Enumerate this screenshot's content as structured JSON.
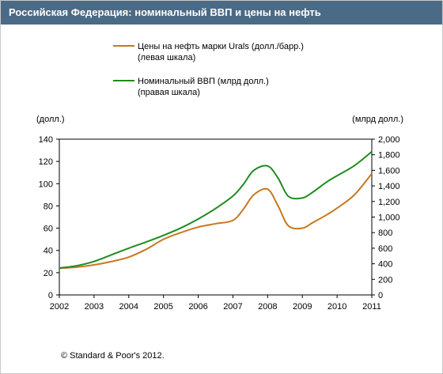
{
  "header": {
    "title": "Российская Федерация: номинальный ВВП и цены на нефть"
  },
  "footer": {
    "copyright": "© Standard & Poor's 2012."
  },
  "colors": {
    "oil": "#c8781e",
    "gdp": "#1e8c1e",
    "title_bg": "#4b6a85"
  },
  "chart_data": {
    "type": "line",
    "x": [
      2002.0,
      2002.5,
      2003.0,
      2003.5,
      2004.0,
      2004.5,
      2005.0,
      2005.5,
      2006.0,
      2006.5,
      2007.0,
      2007.3,
      2007.6,
      2008.0,
      2008.3,
      2008.6,
      2009.0,
      2009.3,
      2009.7,
      2010.0,
      2010.5,
      2011.0
    ],
    "xticks": [
      "2002",
      "2003",
      "2004",
      "2005",
      "2006",
      "2007",
      "2008",
      "2009",
      "2010",
      "2011"
    ],
    "left_axis": {
      "label": "(долл.)",
      "ticks": [
        "0",
        "20",
        "40",
        "60",
        "80",
        "100",
        "120",
        "140"
      ],
      "range": [
        0,
        140
      ]
    },
    "right_axis": {
      "label": "(млрд долл.)",
      "ticks": [
        "0",
        "200",
        "400",
        "600",
        "800",
        "1,000",
        "1,200",
        "1,400",
        "1,600",
        "1,800",
        "2,000"
      ],
      "range": [
        0,
        2000
      ]
    },
    "series": [
      {
        "name": "Цены на нефть марки Urals (долл./барр.)",
        "sub": "(левая шкала)",
        "axis": "left",
        "values": [
          24,
          25,
          27,
          30,
          34,
          41,
          50,
          56,
          61,
          64,
          67,
          77,
          90,
          95,
          80,
          62,
          60,
          65,
          72,
          78,
          90,
          109
        ]
      },
      {
        "name": "Номинальный ВВП (млрд долл.)",
        "sub": "(правая шкала)",
        "axis": "right",
        "values": [
          345,
          375,
          430,
          515,
          600,
          680,
          765,
          860,
          975,
          1110,
          1270,
          1420,
          1600,
          1655,
          1500,
          1265,
          1245,
          1320,
          1450,
          1530,
          1660,
          1840
        ]
      }
    ],
    "grid": false,
    "legend": "top"
  }
}
